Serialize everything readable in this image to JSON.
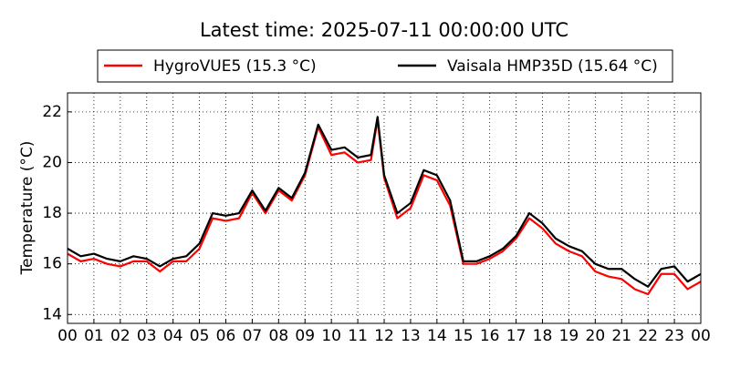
{
  "chart_data": {
    "type": "line",
    "title": "Latest time: 2025-07-11 00:00:00 UTC",
    "y_label": "Temperature (°C)",
    "x": [
      0,
      0.5,
      1,
      1.5,
      2,
      2.5,
      3,
      3.5,
      4,
      4.5,
      5,
      5.5,
      6,
      6.5,
      7,
      7.5,
      8,
      8.5,
      9,
      9.5,
      10,
      10.5,
      11,
      11.5,
      11.75,
      12,
      12.5,
      13,
      13.5,
      14,
      14.5,
      15,
      15.5,
      16,
      16.5,
      17,
      17.5,
      18,
      18.5,
      19,
      19.5,
      20,
      20.5,
      21,
      21.5,
      22,
      22.5,
      23,
      23.5,
      24
    ],
    "series": [
      {
        "name": "HygroVUE5 (15.3 °C)",
        "color": "#ff0000",
        "values": [
          16.4,
          16.1,
          16.2,
          16.0,
          15.9,
          16.1,
          16.1,
          15.7,
          16.1,
          16.1,
          16.6,
          17.8,
          17.7,
          17.8,
          18.8,
          18.0,
          18.9,
          18.5,
          19.5,
          21.4,
          20.3,
          20.4,
          20.0,
          20.1,
          21.7,
          19.4,
          17.8,
          18.2,
          19.5,
          19.3,
          18.3,
          16.0,
          16.0,
          16.2,
          16.5,
          17.0,
          17.8,
          17.4,
          16.8,
          16.5,
          16.3,
          15.7,
          15.5,
          15.4,
          15.0,
          14.8,
          15.6,
          15.6,
          15.0,
          15.3
        ]
      },
      {
        "name": "Vaisala HMP35D (15.64 °C)",
        "color": "#000000",
        "values": [
          16.6,
          16.3,
          16.4,
          16.2,
          16.1,
          16.3,
          16.2,
          15.9,
          16.2,
          16.3,
          16.8,
          18.0,
          17.9,
          18.0,
          18.9,
          18.1,
          19.0,
          18.6,
          19.6,
          21.5,
          20.5,
          20.6,
          20.2,
          20.3,
          21.8,
          19.5,
          18.0,
          18.4,
          19.7,
          19.5,
          18.5,
          16.1,
          16.1,
          16.3,
          16.6,
          17.1,
          18.0,
          17.6,
          17.0,
          16.7,
          16.5,
          16.0,
          15.8,
          15.8,
          15.4,
          15.1,
          15.8,
          15.9,
          15.3,
          15.6
        ]
      }
    ],
    "xlim": [
      0,
      24
    ],
    "xticks": [
      {
        "value": 0,
        "label": "00"
      },
      {
        "value": 1,
        "label": "01"
      },
      {
        "value": 2,
        "label": "02"
      },
      {
        "value": 3,
        "label": "03"
      },
      {
        "value": 4,
        "label": "04"
      },
      {
        "value": 5,
        "label": "05"
      },
      {
        "value": 6,
        "label": "06"
      },
      {
        "value": 7,
        "label": "07"
      },
      {
        "value": 8,
        "label": "08"
      },
      {
        "value": 9,
        "label": "09"
      },
      {
        "value": 10,
        "label": "10"
      },
      {
        "value": 11,
        "label": "11"
      },
      {
        "value": 12,
        "label": "12"
      },
      {
        "value": 13,
        "label": "13"
      },
      {
        "value": 14,
        "label": "14"
      },
      {
        "value": 15,
        "label": "15"
      },
      {
        "value": 16,
        "label": "16"
      },
      {
        "value": 17,
        "label": "17"
      },
      {
        "value": 18,
        "label": "18"
      },
      {
        "value": 19,
        "label": "19"
      },
      {
        "value": 20,
        "label": "20"
      },
      {
        "value": 21,
        "label": "21"
      },
      {
        "value": 22,
        "label": "22"
      },
      {
        "value": 23,
        "label": "23"
      },
      {
        "value": 24,
        "label": "00"
      }
    ],
    "ylim": [
      13.65,
      22.75
    ],
    "yticks": [
      14,
      16,
      18,
      20,
      22
    ],
    "grid": true,
    "legend": "top"
  }
}
